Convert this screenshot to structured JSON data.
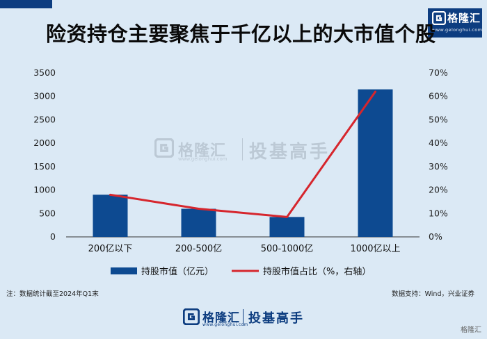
{
  "brand": {
    "name": "格隆汇",
    "url": "www.gelonghui.com"
  },
  "title": "险资持仓主要聚焦于千亿以上的大市值个股",
  "chart_data": {
    "type": "bar",
    "categories": [
      "200亿以下",
      "200-500亿",
      "500-1000亿",
      "1000亿以上"
    ],
    "series": [
      {
        "name": "持股市值（亿元）",
        "type": "bar",
        "axis": "left",
        "values": [
          900,
          600,
          425,
          3150
        ],
        "color": "#0d4a91"
      },
      {
        "name": "持股市值占比（%，右轴）",
        "type": "line",
        "axis": "right",
        "values": [
          18,
          12,
          8.5,
          62
        ],
        "color": "#d6262d"
      }
    ],
    "y_left": {
      "min": 0,
      "max": 3500,
      "ticks": [
        0,
        500,
        1000,
        1500,
        2000,
        2500,
        3000,
        3500
      ]
    },
    "y_right": {
      "min": 0,
      "max": 70,
      "ticks": [
        "0%",
        "10%",
        "20%",
        "30%",
        "40%",
        "50%",
        "60%",
        "70%"
      ]
    },
    "legend_position": "bottom",
    "grid": false
  },
  "note_left": "注：数据统计截至2024年Q1末",
  "note_right": "数据支持：Wind，兴业证券",
  "footer": {
    "brand": "格隆汇",
    "url": "www.gelonghui.com",
    "slogan": "投基高手"
  },
  "watermark": {
    "brand": "格隆汇",
    "url": "www.gelonghui.com",
    "slogan": "投基高手"
  },
  "corner": "格隆汇"
}
